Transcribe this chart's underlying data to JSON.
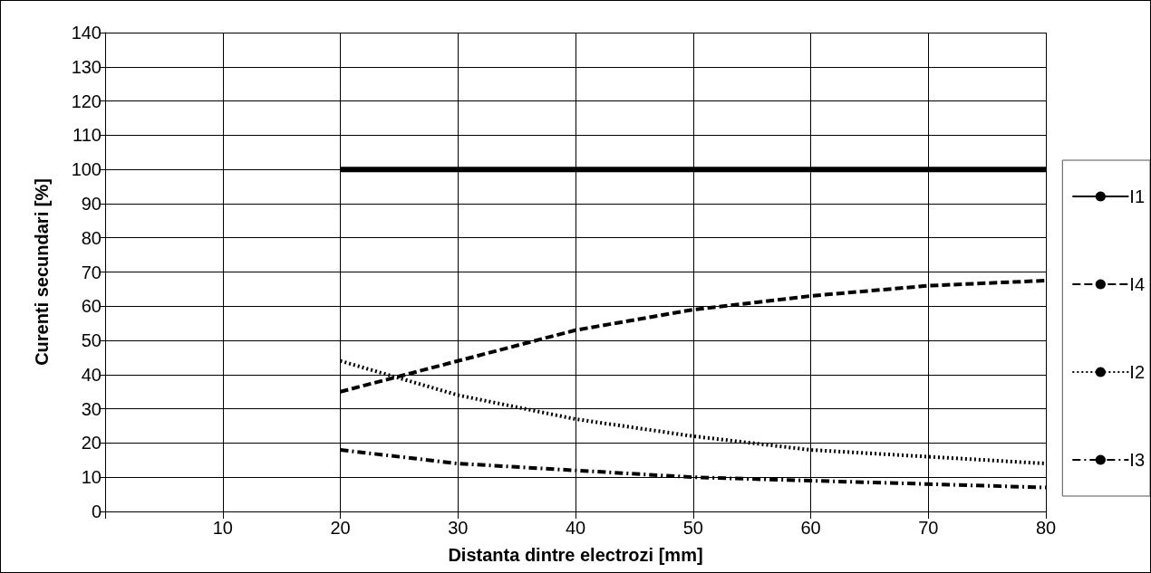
{
  "chart_data": {
    "type": "line",
    "xlabel": "Distanta dintre electrozi [mm]",
    "ylabel": "Curenti secundari [%]",
    "x": [
      20,
      30,
      40,
      50,
      60,
      70,
      80
    ],
    "series": [
      {
        "name": "I1",
        "color": "#000000",
        "line_style": "solid",
        "values": [
          100,
          100,
          100,
          100,
          100,
          100,
          100
        ]
      },
      {
        "name": "I4",
        "color": "#000000",
        "line_style": "dashed",
        "values": [
          35,
          44,
          53,
          59,
          63,
          66,
          67.5
        ]
      },
      {
        "name": "I2",
        "color": "#000000",
        "line_style": "dotted",
        "values": [
          44,
          34,
          27,
          22,
          18,
          16,
          14
        ]
      },
      {
        "name": "I3",
        "color": "#000000",
        "line_style": "dashdot",
        "values": [
          18,
          14,
          12,
          10,
          9,
          8,
          7
        ]
      }
    ],
    "xlim": [
      0,
      80
    ],
    "xticks": [
      {
        "value": 0,
        "label": null
      },
      10,
      20,
      30,
      40,
      50,
      60,
      70,
      80
    ],
    "ylim": [
      0,
      140
    ],
    "yticks": [
      0,
      10,
      20,
      30,
      40,
      50,
      60,
      70,
      80,
      90,
      100,
      110,
      120,
      130,
      140
    ],
    "grid": true,
    "legend": "right",
    "marker": "none"
  }
}
